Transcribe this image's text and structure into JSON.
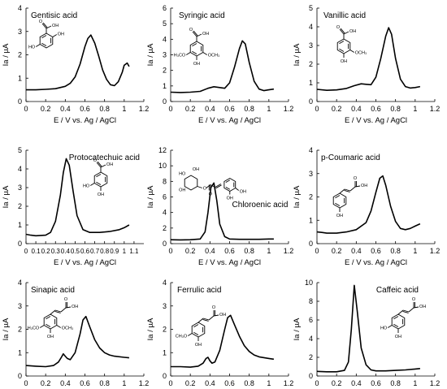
{
  "figure": {
    "panels": [
      {
        "id": "gentisic",
        "title": "Gentisic acid"
      },
      {
        "id": "syringic",
        "title": "Syringic acid"
      },
      {
        "id": "vanillic",
        "title": "Vanillic acid"
      },
      {
        "id": "protocatechuic",
        "title": "Protocatechuic acid"
      },
      {
        "id": "chlorogenic",
        "title": "Chloroenic  acid"
      },
      {
        "id": "coumaric",
        "title": "p-Coumaric acid"
      },
      {
        "id": "sinapic",
        "title": "Sinapic acid"
      },
      {
        "id": "ferulic",
        "title": "Ferrulic acid"
      },
      {
        "id": "caffeic",
        "title": "Caffeic acid"
      }
    ],
    "molecule_labels": {
      "cooh": "OH",
      "o": "O",
      "oh": "OH",
      "ho": "HO",
      "och3": "OCH₃",
      "h3co": "H₃CO",
      "ch3o": "CH₃O"
    }
  },
  "chart_data": [
    {
      "type": "line",
      "title": "Gentisic acid",
      "xlabel": "E / V  vs. Ag / AgCl",
      "ylabel": "Ia / µA",
      "xlim": [
        0,
        1.2
      ],
      "ylim": [
        0,
        4
      ],
      "xticks": [
        "0",
        "0.2",
        "0.4",
        "0.6",
        "0.8",
        "1",
        "1.2"
      ],
      "yticks": [
        "0",
        "1",
        "2",
        "3",
        "4"
      ],
      "series": [
        {
          "x": [
            0,
            0.05,
            0.1,
            0.2,
            0.3,
            0.4,
            0.45,
            0.5,
            0.55,
            0.6,
            0.63,
            0.66,
            0.7,
            0.74,
            0.78,
            0.82,
            0.86,
            0.9,
            0.94,
            0.98,
            1.0,
            1.03,
            1.05
          ],
          "y": [
            0.5,
            0.5,
            0.5,
            0.52,
            0.55,
            0.65,
            0.78,
            1.05,
            1.6,
            2.35,
            2.7,
            2.85,
            2.5,
            1.95,
            1.35,
            0.95,
            0.72,
            0.68,
            0.85,
            1.25,
            1.55,
            1.65,
            1.5
          ]
        }
      ]
    },
    {
      "type": "line",
      "title": "Syringic acid",
      "xlabel": "E / V  vs. Ag / AgCl",
      "ylabel": "Ia / µA",
      "xlim": [
        0,
        1.2
      ],
      "ylim": [
        0,
        6
      ],
      "xticks": [
        "0",
        "0.2",
        "0.4",
        "0.6",
        "0.8",
        "1",
        "1.2"
      ],
      "yticks": [
        "0",
        "1",
        "2",
        "3",
        "4",
        "5",
        "6"
      ],
      "series": [
        {
          "x": [
            0,
            0.1,
            0.2,
            0.3,
            0.38,
            0.44,
            0.5,
            0.55,
            0.6,
            0.65,
            0.7,
            0.73,
            0.76,
            0.8,
            0.85,
            0.9,
            0.95,
            1.0,
            1.05
          ],
          "y": [
            0.6,
            0.58,
            0.6,
            0.65,
            0.85,
            0.95,
            0.9,
            0.85,
            1.2,
            2.2,
            3.4,
            3.9,
            3.7,
            2.5,
            1.3,
            0.8,
            0.7,
            0.75,
            0.8
          ]
        }
      ]
    },
    {
      "type": "line",
      "title": "Vanillic acid",
      "xlabel": "E / V  vs. Ag / AgCl",
      "ylabel": "Ia / µA",
      "xlim": [
        0,
        1.2
      ],
      "ylim": [
        0,
        5
      ],
      "xticks": [
        "0",
        "0.2",
        "0.4",
        "0.6",
        "0.8",
        "1",
        "1.2"
      ],
      "yticks": [
        "0",
        "1",
        "2",
        "3",
        "4",
        "5"
      ],
      "series": [
        {
          "x": [
            0,
            0.1,
            0.2,
            0.3,
            0.38,
            0.45,
            0.5,
            0.55,
            0.6,
            0.65,
            0.7,
            0.73,
            0.76,
            0.8,
            0.85,
            0.9,
            0.95,
            1.0,
            1.05
          ],
          "y": [
            0.65,
            0.6,
            0.62,
            0.7,
            0.85,
            0.95,
            0.92,
            0.9,
            1.3,
            2.3,
            3.5,
            3.95,
            3.6,
            2.3,
            1.2,
            0.8,
            0.72,
            0.75,
            0.8
          ]
        }
      ]
    },
    {
      "type": "line",
      "title": "Protocatechuic acid",
      "xlabel": "E / V  vs. Ag / AgCl",
      "ylabel": "Ia / µA",
      "xlim": [
        0,
        1.2
      ],
      "ylim": [
        0,
        5
      ],
      "xticks": [
        "0",
        "0.1",
        "0.2",
        "0.3",
        "0.4",
        "0.5",
        "0.6",
        "0.7",
        "0.8",
        "0.9",
        "1",
        "1.1"
      ],
      "yticks": [
        "0",
        "1",
        "2",
        "3",
        "4",
        "5"
      ],
      "series": [
        {
          "x": [
            0,
            0.05,
            0.1,
            0.2,
            0.25,
            0.3,
            0.35,
            0.38,
            0.41,
            0.44,
            0.48,
            0.52,
            0.58,
            0.65,
            0.75,
            0.85,
            0.95,
            1.0,
            1.05
          ],
          "y": [
            0.5,
            0.45,
            0.42,
            0.45,
            0.6,
            1.2,
            2.6,
            3.8,
            4.55,
            4.2,
            2.8,
            1.5,
            0.75,
            0.6,
            0.6,
            0.65,
            0.75,
            0.85,
            1.0
          ]
        }
      ]
    },
    {
      "type": "line",
      "title": "Chloroenic  acid",
      "xlabel": "E / V  vs. Ag / AgCl",
      "ylabel": "Ia / µA",
      "xlim": [
        0,
        1.2
      ],
      "ylim": [
        0,
        12
      ],
      "xticks": [
        "0",
        "0.2",
        "0.4",
        "0.6",
        "0.8",
        "1",
        "1.2"
      ],
      "yticks": [
        "0",
        "2",
        "4",
        "6",
        "8",
        "10",
        "12"
      ],
      "series": [
        {
          "x": [
            0,
            0.1,
            0.2,
            0.3,
            0.35,
            0.38,
            0.41,
            0.44,
            0.47,
            0.5,
            0.55,
            0.6,
            0.7,
            0.8,
            0.9,
            1.0,
            1.05
          ],
          "y": [
            0.5,
            0.48,
            0.5,
            0.6,
            1.5,
            4.0,
            7.2,
            7.8,
            5.5,
            2.5,
            0.9,
            0.6,
            0.55,
            0.55,
            0.55,
            0.6,
            0.6
          ]
        }
      ]
    },
    {
      "type": "line",
      "title": "p-Coumaric acid",
      "xlabel": "E / V  vs. Ag / AgCl",
      "ylabel": "Ia / µA",
      "xlim": [
        0,
        1.2
      ],
      "ylim": [
        0,
        4
      ],
      "xticks": [
        "0",
        "0.2",
        "0.4",
        "0.6",
        "0.8",
        "1",
        "1.2"
      ],
      "yticks": [
        "0",
        "1",
        "2",
        "3",
        "4"
      ],
      "series": [
        {
          "x": [
            0,
            0.05,
            0.1,
            0.2,
            0.3,
            0.4,
            0.5,
            0.55,
            0.6,
            0.64,
            0.67,
            0.7,
            0.75,
            0.8,
            0.85,
            0.9,
            0.95,
            1.0,
            1.05
          ],
          "y": [
            0.5,
            0.48,
            0.45,
            0.45,
            0.5,
            0.6,
            0.9,
            1.4,
            2.2,
            2.8,
            2.9,
            2.5,
            1.6,
            0.95,
            0.65,
            0.6,
            0.65,
            0.75,
            0.85
          ]
        }
      ]
    },
    {
      "type": "line",
      "title": "Sinapic acid",
      "xlabel": "E / V  vs. Ag / AgCl",
      "ylabel": "Ia / µA",
      "xlim": [
        0,
        1.2
      ],
      "ylim": [
        0,
        4
      ],
      "xticks": [
        "0",
        "0.2",
        "0.4",
        "0.6",
        "0.8",
        "1",
        "1.2"
      ],
      "yticks": [
        "0",
        "1",
        "2",
        "3",
        "4"
      ],
      "series": [
        {
          "x": [
            0,
            0.1,
            0.2,
            0.28,
            0.33,
            0.36,
            0.38,
            0.4,
            0.42,
            0.45,
            0.5,
            0.55,
            0.58,
            0.61,
            0.65,
            0.7,
            0.75,
            0.8,
            0.85,
            0.9,
            1.0,
            1.05
          ],
          "y": [
            0.45,
            0.42,
            0.4,
            0.45,
            0.6,
            0.8,
            0.95,
            0.85,
            0.75,
            0.7,
            1.0,
            1.8,
            2.4,
            2.55,
            2.1,
            1.55,
            1.2,
            1.0,
            0.9,
            0.85,
            0.8,
            0.78
          ]
        }
      ]
    },
    {
      "type": "line",
      "title": "Ferrulic acid",
      "xlabel": "E / V  vs. Ag / AgCl",
      "ylabel": "Ia / µA",
      "xlim": [
        0,
        1.2
      ],
      "ylim": [
        0,
        4
      ],
      "xticks": [
        "0",
        "0.2",
        "0.4",
        "0.6",
        "0.8",
        "1",
        "1.2"
      ],
      "yticks": [
        "0",
        "1",
        "2",
        "3",
        "4"
      ],
      "series": [
        {
          "x": [
            0,
            0.1,
            0.2,
            0.28,
            0.33,
            0.36,
            0.38,
            0.4,
            0.42,
            0.45,
            0.5,
            0.55,
            0.58,
            0.61,
            0.65,
            0.7,
            0.75,
            0.8,
            0.85,
            0.9,
            1.0,
            1.05
          ],
          "y": [
            0.4,
            0.4,
            0.38,
            0.42,
            0.55,
            0.75,
            0.8,
            0.65,
            0.55,
            0.6,
            1.1,
            2.0,
            2.5,
            2.6,
            2.2,
            1.7,
            1.3,
            1.05,
            0.9,
            0.82,
            0.75,
            0.72
          ]
        }
      ]
    },
    {
      "type": "line",
      "title": "Caffeic acid",
      "xlabel": "E / V  vs. Ag / AgCl",
      "ylabel": "Ia / µA",
      "xlim": [
        0,
        1.2
      ],
      "ylim": [
        0,
        10
      ],
      "xticks": [
        "0",
        "0.2",
        "0.4",
        "0.6",
        "0.8",
        "1",
        "1.2"
      ],
      "yticks": [
        "0",
        "2",
        "4",
        "6",
        "8",
        "10"
      ],
      "series": [
        {
          "x": [
            0,
            0.1,
            0.2,
            0.28,
            0.32,
            0.35,
            0.38,
            0.41,
            0.45,
            0.5,
            0.55,
            0.6,
            0.7,
            0.8,
            0.9,
            1.0,
            1.05
          ],
          "y": [
            0.5,
            0.45,
            0.45,
            0.6,
            1.5,
            5.0,
            9.7,
            7.0,
            3.0,
            1.2,
            0.65,
            0.55,
            0.55,
            0.6,
            0.65,
            0.75,
            0.8
          ]
        }
      ]
    }
  ]
}
